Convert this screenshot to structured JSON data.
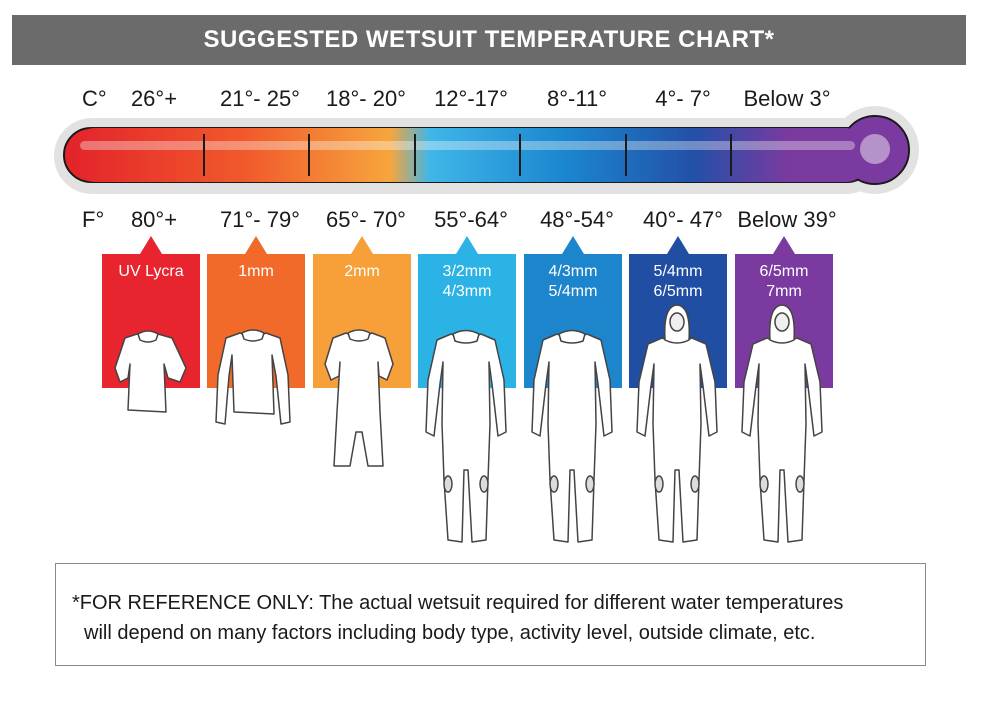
{
  "title": "SUGGESTED WETSUIT TEMPERATURE CHART*",
  "celsius_unit": "C°",
  "fahrenheit_unit": "F°",
  "celsius": [
    "26°+",
    "21°- 25°",
    "18°- 20°",
    "12°-17°",
    "8°-11°",
    "4°- 7°",
    "Below 3°"
  ],
  "fahrenheit": [
    "80°+",
    "71°- 79°",
    "65°- 70°",
    "55°-64°",
    "48°-54°",
    "40°- 47°",
    "Below 39°"
  ],
  "suits": [
    {
      "line1": "UV Lycra",
      "line2": "",
      "color": "#e8242e",
      "icon": "rash-vest-icon"
    },
    {
      "line1": "1mm",
      "line2": "",
      "color": "#f26a2a",
      "icon": "long-sleeve-top-icon"
    },
    {
      "line1": "2mm",
      "line2": "",
      "color": "#f7a03a",
      "icon": "shorty-wetsuit-icon"
    },
    {
      "line1": "3/2mm",
      "line2": "4/3mm",
      "color": "#2bb3e6",
      "icon": "full-wetsuit-icon"
    },
    {
      "line1": "4/3mm",
      "line2": "5/4mm",
      "color": "#1d85cc",
      "icon": "full-wetsuit-icon"
    },
    {
      "line1": "5/4mm",
      "line2": "6/5mm",
      "color": "#1f4ea3",
      "icon": "hooded-wetsuit-icon"
    },
    {
      "line1": "6/5mm",
      "line2": "7mm",
      "color": "#7b3aa0",
      "icon": "hooded-wetsuit-icon"
    }
  ],
  "note": {
    "line1": "*FOR REFERENCE ONLY: The actual wetsuit required for different water temperatures",
    "line2": "will depend on many factors including body type, activity level, outside climate, etc."
  }
}
